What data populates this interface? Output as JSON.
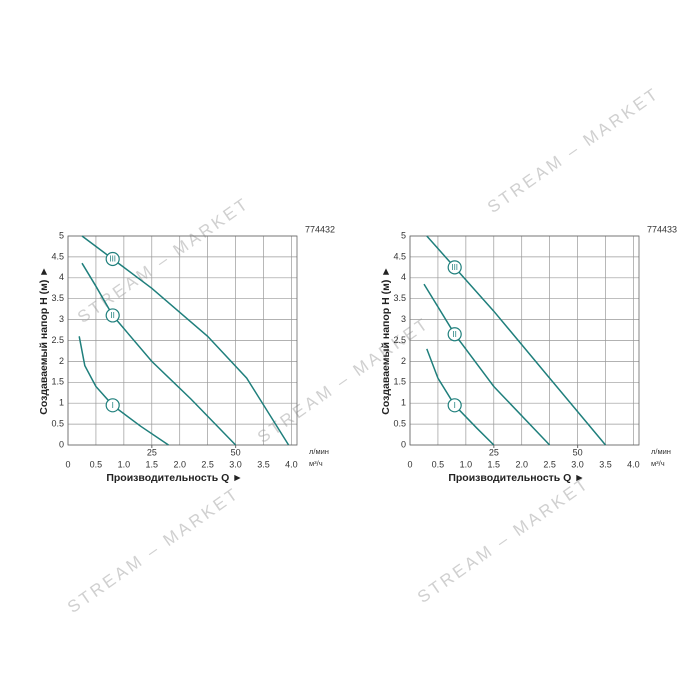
{
  "watermark": "STREAM – MARKET",
  "chart_data": [
    {
      "type": "line",
      "title": "774432",
      "ylabel": "Создаваемый напор Н (м) ►",
      "xlabel": "Производительность Q ►",
      "x_unit": "м³/ч",
      "x2_unit": "л/мин",
      "xlim": [
        0,
        4.1
      ],
      "xticks": [
        0,
        0.5,
        {
          "value": 1.0,
          "label": "1.0"
        },
        1.5,
        {
          "value": 2.0,
          "label": "2.0"
        },
        2.5,
        {
          "value": 3.0,
          "label": "3.0"
        },
        3.5,
        {
          "value": 4.0,
          "label": "4.0"
        }
      ],
      "x2lim": [
        0,
        68.3
      ],
      "x2ticks": [
        25,
        50
      ],
      "ylim": [
        0,
        5
      ],
      "yticks": [
        0,
        0.5,
        1,
        1.5,
        2,
        2.5,
        3,
        3.5,
        4,
        4.5,
        5
      ],
      "grid": true,
      "series": [
        {
          "name": "I",
          "color": "#1f7f7c",
          "x": [
            0.2,
            0.3,
            0.5,
            0.8,
            1.3,
            1.8
          ],
          "values": [
            2.6,
            1.9,
            1.4,
            0.95,
            0.45,
            0
          ]
        },
        {
          "name": "II",
          "color": "#1f7f7c",
          "x": [
            0.25,
            0.5,
            0.8,
            1.5,
            2.2,
            3.0
          ],
          "values": [
            4.35,
            3.8,
            3.1,
            2.0,
            1.1,
            0
          ]
        },
        {
          "name": "III",
          "color": "#1f7f7c",
          "x": [
            0.25,
            0.8,
            1.5,
            2.5,
            3.2,
            3.95
          ],
          "values": [
            5.0,
            4.45,
            3.75,
            2.6,
            1.6,
            0
          ]
        }
      ]
    },
    {
      "type": "line",
      "title": "774433",
      "ylabel": "Создаваемый напор Н (м) ►",
      "xlabel": "Производительность Q ►",
      "x_unit": "м³/ч",
      "x2_unit": "л/мин",
      "xlim": [
        0,
        4.1
      ],
      "xticks": [
        0,
        0.5,
        {
          "value": 1.0,
          "label": "1.0"
        },
        1.5,
        {
          "value": 2.0,
          "label": "2.0"
        },
        2.5,
        {
          "value": 3.0,
          "label": "3.0"
        },
        3.5,
        {
          "value": 4.0,
          "label": "4.0"
        }
      ],
      "x2lim": [
        0,
        68.3
      ],
      "x2ticks": [
        25,
        50
      ],
      "ylim": [
        0,
        5
      ],
      "yticks": [
        0,
        0.5,
        1,
        1.5,
        2,
        2.5,
        3,
        3.5,
        4,
        4.5,
        5
      ],
      "grid": true,
      "series": [
        {
          "name": "I",
          "color": "#1f7f7c",
          "x": [
            0.3,
            0.5,
            0.8,
            1.2,
            1.5
          ],
          "values": [
            2.3,
            1.6,
            0.95,
            0.4,
            0
          ]
        },
        {
          "name": "II",
          "color": "#1f7f7c",
          "x": [
            0.25,
            0.8,
            1.5,
            2.5
          ],
          "values": [
            3.85,
            2.65,
            1.4,
            0
          ]
        },
        {
          "name": "III",
          "color": "#1f7f7c",
          "x": [
            0.3,
            0.8,
            1.5,
            2.5,
            3.5
          ],
          "values": [
            5.0,
            4.25,
            3.2,
            1.6,
            0
          ]
        }
      ]
    }
  ]
}
